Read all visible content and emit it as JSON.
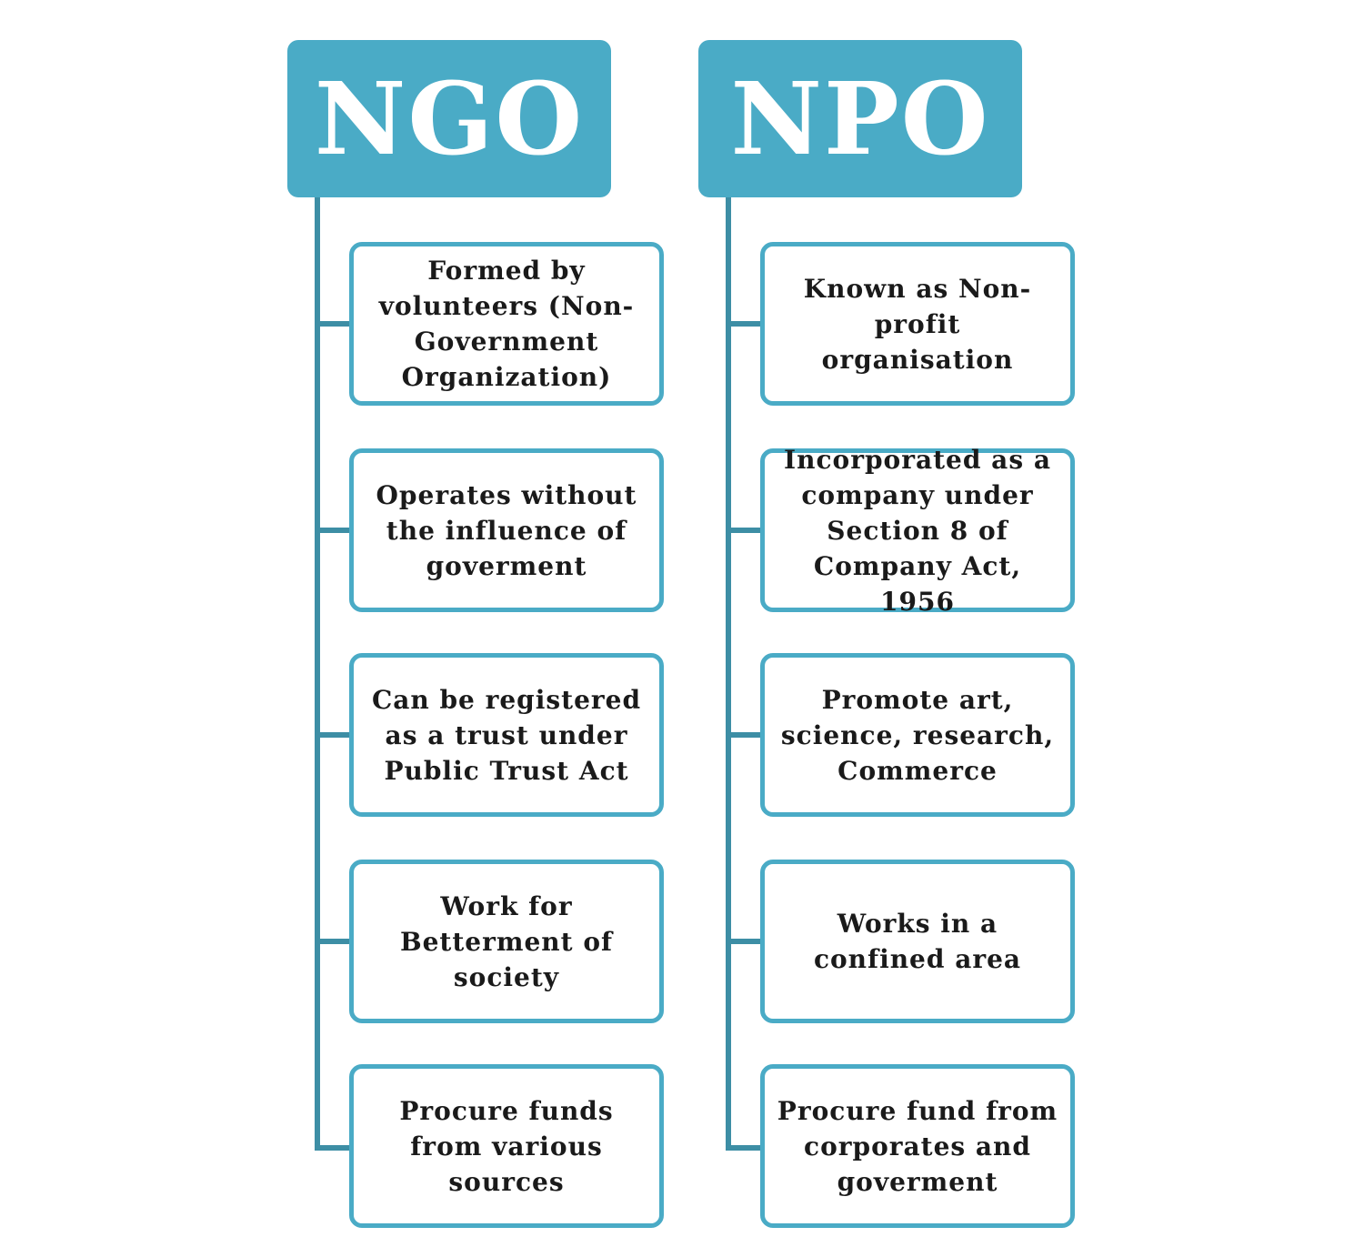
{
  "ngo": {
    "title": "NGO",
    "items": [
      "Formed by volunteers (Non-Government Organization)",
      "Operates without the influence of goverment",
      "Can be registered as a trust under Public Trust Act",
      "Work for Betterment of society",
      "Procure funds from various sources"
    ]
  },
  "npo": {
    "title": "NPO",
    "items": [
      "Known as Non-profit organisation",
      "Incorporated as a company under Section 8 of Company Act, 1956",
      "Promote art, science, research, Commerce",
      "Works in a confined area",
      "Procure fund from corporates and goverment"
    ]
  },
  "colors": {
    "header_fill": "#4aabc6",
    "box_border": "#4aabc6",
    "connector": "#3d8ea5"
  }
}
